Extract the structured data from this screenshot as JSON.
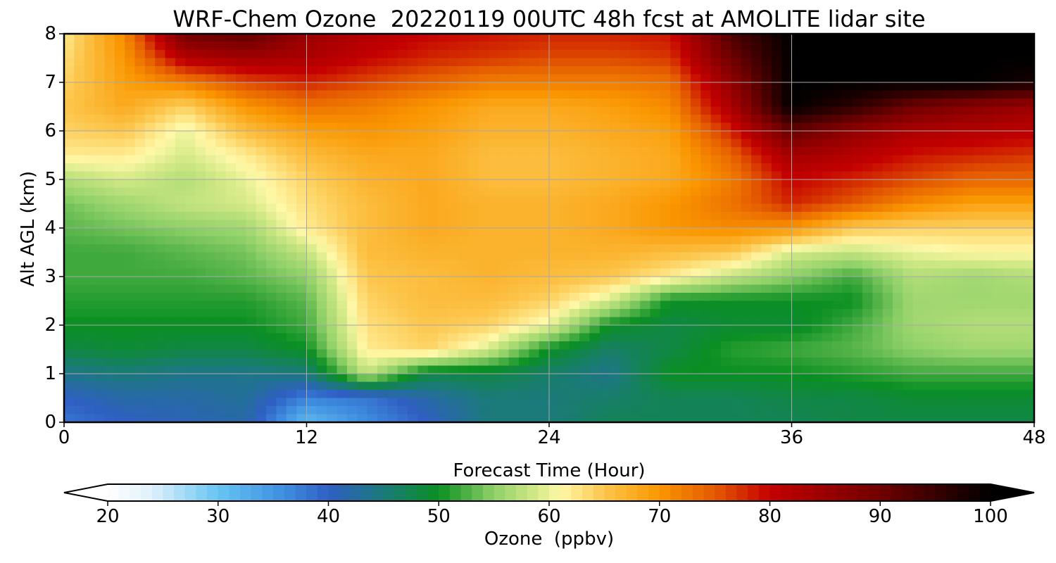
{
  "chart_data": {
    "type": "heatmap",
    "title": "WRF-Chem Ozone  20220119 00UTC 48h fcst at AMOLITE lidar site",
    "xlabel": "Forecast Time (Hour)",
    "ylabel": "Alt AGL (km)",
    "xlim": [
      0,
      48
    ],
    "ylim": [
      0,
      8
    ],
    "x_ticks": [
      "0",
      "12",
      "24",
      "36",
      "48"
    ],
    "y_ticks": [
      "0",
      "1",
      "2",
      "3",
      "4",
      "5",
      "6",
      "7",
      "8"
    ],
    "grid": true,
    "z_units": "ppbv",
    "x": [
      0,
      3,
      6,
      9,
      12,
      15,
      18,
      21,
      24,
      27,
      30,
      33,
      36,
      39,
      42,
      45,
      48
    ],
    "y": [
      0,
      0.5,
      1,
      1.5,
      2,
      2.5,
      3,
      3.5,
      4,
      4.5,
      5,
      5.5,
      6,
      6.5,
      7,
      7.5,
      8
    ],
    "z": [
      [
        38,
        40,
        41,
        42,
        31,
        36,
        40,
        45,
        45,
        47,
        47,
        47,
        47,
        48,
        48,
        48,
        48
      ],
      [
        40,
        42,
        42,
        43,
        37,
        38,
        42,
        45,
        45,
        46,
        47,
        47,
        48,
        48,
        49,
        49,
        49
      ],
      [
        44,
        45,
        44,
        44,
        45,
        58,
        48,
        48,
        46,
        44,
        50,
        50,
        50,
        51,
        52,
        52,
        52
      ],
      [
        48,
        49,
        48,
        48,
        50,
        62,
        64,
        59,
        50,
        46,
        48,
        51,
        52,
        53,
        55,
        56,
        56
      ],
      [
        50,
        50,
        50,
        50,
        52,
        63,
        65,
        64,
        60,
        50,
        48,
        49,
        49,
        52,
        56,
        57,
        57
      ],
      [
        51,
        51,
        51,
        51,
        53,
        64,
        66,
        66,
        64,
        59,
        50,
        50,
        50,
        50,
        56,
        56,
        56
      ],
      [
        52,
        52,
        52,
        53,
        55,
        65,
        66,
        67,
        66,
        65,
        62,
        58,
        55,
        52,
        57,
        56,
        57
      ],
      [
        52,
        52,
        53,
        54,
        58,
        66,
        67,
        67,
        67,
        67,
        66,
        65,
        59,
        58,
        60,
        61,
        61
      ],
      [
        53,
        54,
        55,
        56,
        62,
        66,
        68,
        67,
        67,
        68,
        70,
        71,
        70,
        65,
        64,
        64,
        64
      ],
      [
        54,
        56,
        58,
        59,
        63,
        66,
        68,
        67,
        67,
        68,
        70,
        73,
        78,
        75,
        71,
        69,
        69
      ],
      [
        57,
        59,
        57,
        60,
        64,
        67,
        68,
        66,
        66,
        67,
        68,
        72,
        80,
        78,
        76,
        74,
        74
      ],
      [
        62,
        62,
        59,
        62,
        66,
        68,
        68,
        66,
        66,
        67,
        68,
        74,
        84,
        82,
        79,
        78,
        77
      ],
      [
        64,
        65,
        60,
        66,
        69,
        70,
        69,
        67,
        67,
        68,
        69,
        78,
        91,
        86,
        83,
        82,
        81
      ],
      [
        65,
        68,
        64,
        70,
        73,
        72,
        70,
        68,
        68,
        69,
        71,
        83,
        100,
        96,
        90,
        87,
        85
      ],
      [
        64,
        69,
        72,
        76,
        78,
        76,
        74,
        72,
        72,
        72,
        73,
        86,
        100,
        100,
        100,
        100,
        98
      ],
      [
        63,
        70,
        82,
        84,
        83,
        80,
        78,
        77,
        76,
        76,
        77,
        90,
        100,
        100,
        100,
        100,
        100
      ],
      [
        62,
        71,
        90,
        92,
        85,
        82,
        80,
        79,
        78,
        78,
        79,
        93,
        100,
        100,
        100,
        100,
        100
      ]
    ],
    "colorbar": {
      "label": "Ozone  (ppbv)",
      "ticks": [
        "20",
        "30",
        "40",
        "50",
        "60",
        "70",
        "80",
        "90",
        "100"
      ],
      "min": 20,
      "max": 100,
      "extend": "both",
      "stops": [
        {
          "v": 20,
          "c": "#ffffff"
        },
        {
          "v": 24,
          "c": "#dff1fb"
        },
        {
          "v": 30,
          "c": "#66c4f2"
        },
        {
          "v": 36,
          "c": "#3e8ee0"
        },
        {
          "v": 40,
          "c": "#2f5fc3"
        },
        {
          "v": 45,
          "c": "#1b7a7a"
        },
        {
          "v": 50,
          "c": "#0a8f22"
        },
        {
          "v": 55,
          "c": "#8fd068"
        },
        {
          "v": 59,
          "c": "#d5ea88"
        },
        {
          "v": 61,
          "c": "#fff8a8"
        },
        {
          "v": 65,
          "c": "#fcc64c"
        },
        {
          "v": 70,
          "c": "#fa9600"
        },
        {
          "v": 75,
          "c": "#e45a00"
        },
        {
          "v": 80,
          "c": "#c40000"
        },
        {
          "v": 90,
          "c": "#700000"
        },
        {
          "v": 100,
          "c": "#000000"
        }
      ]
    }
  }
}
